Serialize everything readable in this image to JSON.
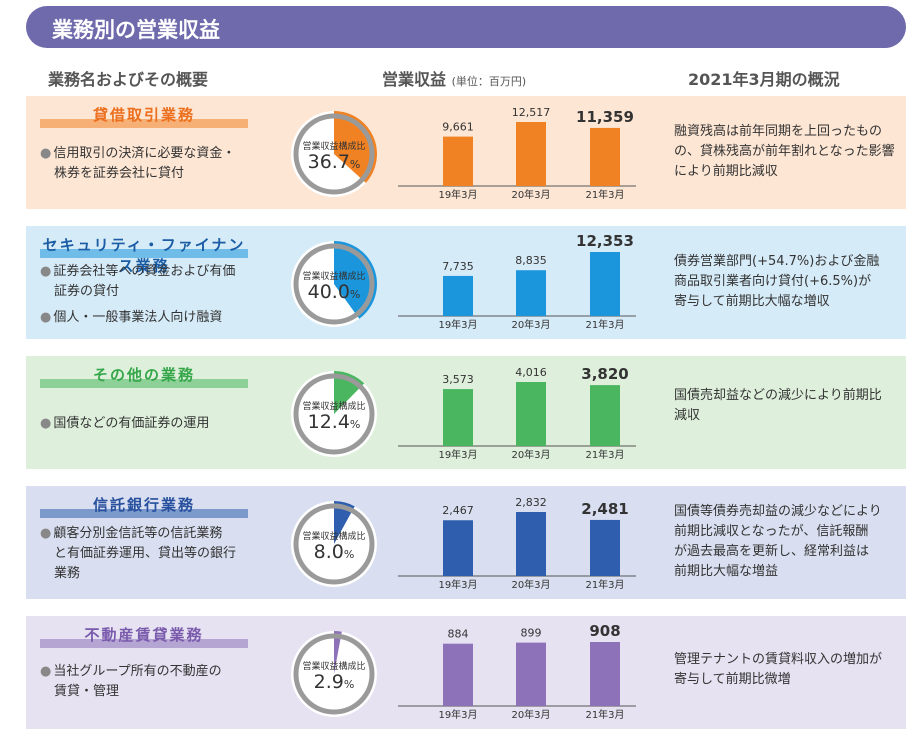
{
  "header": {
    "title": "業務別の営業収益"
  },
  "columns": {
    "business": "業務名およびその概要",
    "revenue": "営業収益",
    "unit": "(単位：百万円)",
    "summary": "2021年3月期の概況"
  },
  "pie_label": "営業収益構成比",
  "colors": {
    "title_bar": "#6e6aab",
    "s1_bg": "#fde6d4",
    "s1_accent": "#f08224",
    "s1_title": "#ec6f1e",
    "s2_bg": "#d6ebf8",
    "s2_accent": "#1b96dc",
    "s2_title": "#1a5da5",
    "s3_bg": "#def0dc",
    "s3_accent": "#4bb660",
    "s3_title": "#36a64a",
    "s4_bg": "#d9dff0",
    "s4_accent": "#2f5eae",
    "s4_title": "#27509e",
    "s5_bg": "#e6e2f1",
    "s5_accent": "#8d72b9",
    "s5_title": "#7a5aac"
  },
  "sections": [
    {
      "title": "貸借取引業務",
      "desc": [
        [
          "信用取引の決済に必要な資金・",
          "株券を証券会社に貸付"
        ]
      ],
      "share": "36.7",
      "summary": [
        "融資残高は前年同期を上回ったもの",
        "の、貸株残高が前年割れとなった影響",
        "により前期比減収"
      ]
    },
    {
      "title": "セキュリティ・ファイナンス業務",
      "desc": [
        [
          "証券会社等への資金および有価",
          "証券の貸付"
        ],
        [
          "個人・一般事業法人向け融資"
        ]
      ],
      "share": "40.0",
      "summary": [
        "債券営業部門(+54.7%)および金融",
        "商品取引業者向け貸付(+6.5%)が",
        "寄与して前期比大幅な増収"
      ]
    },
    {
      "title": "その他の業務",
      "desc": [
        [
          "国債などの有価証券の運用"
        ]
      ],
      "share": "12.4",
      "summary": [
        "国債売却益などの減少により前期比",
        "減収"
      ]
    },
    {
      "title": "信託銀行業務",
      "desc": [
        [
          "顧客分別金信託等の信託業務",
          "と有価証券運用、貸出等の銀行",
          "業務"
        ]
      ],
      "share": "8.0",
      "summary": [
        "国債等債券売却益の減少などにより",
        "前期比減収となったが、信託報酬",
        "が過去最高を更新し、経常利益は",
        "前期比大幅な増益"
      ]
    },
    {
      "title": "不動産賃貸業務",
      "desc": [
        [
          "当社グループ所有の不動産の",
          "賃貸・管理"
        ]
      ],
      "share": "2.9",
      "summary": [
        "管理テナントの賃貸料収入の増加が",
        "寄与して前期比微増"
      ]
    }
  ],
  "chart_data": [
    {
      "type": "bar",
      "categories": [
        "19年3月",
        "20年3月",
        "21年3月"
      ],
      "values": [
        9661,
        12517,
        11359
      ],
      "value_labels": [
        "9,661",
        "12,517",
        "11,359"
      ],
      "share_percent": 36.7
    },
    {
      "type": "bar",
      "categories": [
        "19年3月",
        "20年3月",
        "21年3月"
      ],
      "values": [
        7735,
        8835,
        12353
      ],
      "value_labels": [
        "7,735",
        "8,835",
        "12,353"
      ],
      "share_percent": 40.0
    },
    {
      "type": "bar",
      "categories": [
        "19年3月",
        "20年3月",
        "21年3月"
      ],
      "values": [
        3573,
        4016,
        3820
      ],
      "value_labels": [
        "3,573",
        "4,016",
        "3,820"
      ],
      "share_percent": 12.4
    },
    {
      "type": "bar",
      "categories": [
        "19年3月",
        "20年3月",
        "21年3月"
      ],
      "values": [
        2467,
        2832,
        2481
      ],
      "value_labels": [
        "2,467",
        "2,832",
        "2,481"
      ],
      "share_percent": 8.0
    },
    {
      "type": "bar",
      "categories": [
        "19年3月",
        "20年3月",
        "21年3月"
      ],
      "values": [
        884,
        899,
        908
      ],
      "value_labels": [
        "884",
        "899",
        "908"
      ],
      "share_percent": 2.9
    }
  ]
}
